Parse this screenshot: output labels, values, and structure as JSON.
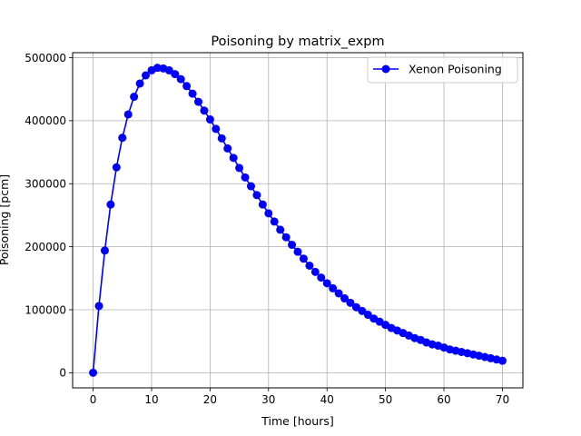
{
  "chart_data": {
    "type": "line",
    "title": "Poisoning by matrix_expm",
    "xlabel": "Time [hours]",
    "ylabel": "Poisoning [pcm]",
    "xlim": [
      -3.5,
      73.5
    ],
    "ylim": [
      -24000,
      508000
    ],
    "xticks": [
      0,
      10,
      20,
      30,
      40,
      50,
      60,
      70
    ],
    "yticks": [
      0,
      100000,
      200000,
      300000,
      400000,
      500000
    ],
    "grid": true,
    "legend": "top-right",
    "series": [
      {
        "name": "Xenon Poisoning",
        "color": "#0000ff",
        "marker": "circle",
        "x": [
          0,
          1,
          2,
          3,
          4,
          5,
          6,
          7,
          8,
          9,
          10,
          11,
          12,
          13,
          14,
          15,
          16,
          17,
          18,
          19,
          20,
          21,
          22,
          23,
          24,
          25,
          26,
          27,
          28,
          29,
          30,
          31,
          32,
          33,
          34,
          35,
          36,
          37,
          38,
          39,
          40,
          41,
          42,
          43,
          44,
          45,
          46,
          47,
          48,
          49,
          50,
          51,
          52,
          53,
          54,
          55,
          56,
          57,
          58,
          59,
          60,
          61,
          62,
          63,
          64,
          65,
          66,
          67,
          68,
          69,
          70
        ],
        "y": [
          0,
          106000,
          194000,
          267000,
          326000,
          373000,
          410000,
          438000,
          459000,
          472000,
          480000,
          484000,
          483000,
          480000,
          474000,
          466000,
          455000,
          443000,
          430000,
          416000,
          402000,
          387000,
          372000,
          356000,
          341000,
          325000,
          310000,
          296000,
          282000,
          267000,
          253000,
          240000,
          227000,
          215000,
          203000,
          192000,
          181000,
          170000,
          160000,
          151000,
          142000,
          134000,
          126000,
          118000,
          111000,
          104000,
          98000,
          92000,
          86000,
          81000,
          76000,
          71000,
          67000,
          63000,
          59000,
          55000,
          52000,
          48000,
          45000,
          43000,
          40000,
          37000,
          35000,
          33000,
          31000,
          29000,
          27000,
          25000,
          23000,
          21000,
          19000
        ]
      }
    ]
  }
}
